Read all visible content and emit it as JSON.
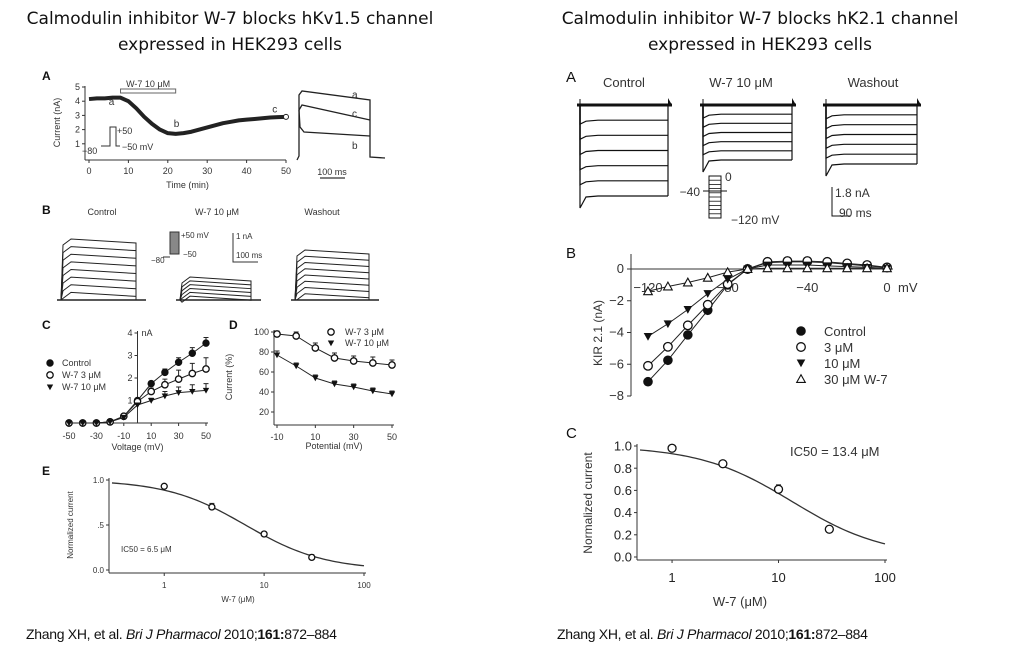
{
  "titles": {
    "left": [
      "Calmodulin inhibitor W-7 blocks hKv1.5 channel",
      "expressed  in HEK293 cells"
    ],
    "right": [
      "Calmodulin inhibitor W-7 blocks hK2.1 channel",
      "expressed  in HEK293 cells"
    ]
  },
  "citations": {
    "left": {
      "authors": "Zhang XH, et al.",
      "journal": "Bri J Pharmacol",
      "year": "2010;",
      "volume": "161:",
      "pages": "872–884"
    },
    "right": {
      "authors": "Zhang XH, et al.",
      "journal": "Bri J Pharmacol",
      "year": "2010;",
      "volume": "161:",
      "pages": "872–884"
    }
  },
  "labels": {
    "left": {
      "A": {
        "letter": "A",
        "drug_bar": "W-7 10 μM",
        "ylabel": "Current (nA)",
        "xlabel": "Time (min)",
        "point_labels": [
          "a",
          "b",
          "c"
        ],
        "protocol": [
          "+50",
          "−80",
          "−50 mV"
        ],
        "trace_labels": [
          "a",
          "c",
          "b"
        ],
        "scale": "100 ms"
      },
      "B": {
        "letter": "B",
        "conditions": [
          "Control",
          "W-7 10 μM",
          "Washout"
        ],
        "protocol": [
          "+50 mV",
          "−80",
          "−50"
        ],
        "scale_current": "1 nA",
        "scale_time": "100 ms"
      },
      "C": {
        "letter": "C"
      },
      "D": {
        "letter": "D"
      },
      "E": {
        "letter": "E",
        "annotation": "IC50 = 6.5 μM"
      }
    },
    "right": {
      "A": {
        "letter": "A",
        "conditions": [
          "Control",
          "W-7 10 μM",
          "Washout"
        ],
        "protocol": [
          "0",
          "−40",
          "−120 mV"
        ],
        "scale_current": "1.8 nA",
        "scale_time": "90 ms"
      },
      "B": {
        "letter": "B"
      },
      "C": {
        "letter": "C",
        "annotation": "IC50 = 13.4 μM"
      }
    }
  },
  "chart_data": [
    {
      "id": "left-A",
      "type": "scatter",
      "title": "",
      "xlabel": "Time (min)",
      "ylabel": "Current (nA)",
      "xlim": [
        0,
        50
      ],
      "ylim": [
        0,
        5
      ],
      "xticks": [
        0,
        10,
        20,
        30,
        40,
        50
      ],
      "yticks": [
        1,
        2,
        3,
        4,
        5
      ],
      "series": [
        {
          "name": "current",
          "x": [
            0,
            2,
            4,
            6,
            8,
            10,
            12,
            14,
            16,
            18,
            20,
            22,
            24,
            26,
            28,
            30,
            32,
            34,
            36,
            38,
            40,
            42,
            44,
            46,
            48,
            50
          ],
          "y": [
            4.15,
            4.2,
            4.2,
            4.25,
            4.25,
            4.0,
            3.5,
            2.9,
            2.4,
            2.0,
            1.75,
            1.7,
            1.75,
            1.85,
            2.0,
            2.15,
            2.3,
            2.45,
            2.55,
            2.65,
            2.7,
            2.75,
            2.8,
            2.85,
            2.88,
            2.9
          ]
        }
      ],
      "annotations": [
        {
          "text": "W-7 10 μM",
          "x_range": [
            8,
            22
          ]
        },
        {
          "text": "a",
          "x": 5
        },
        {
          "text": "b",
          "x": 22
        },
        {
          "text": "c",
          "x": 47
        }
      ]
    },
    {
      "id": "left-C",
      "type": "line",
      "xlabel": "Voltage (mV)",
      "ylabel": "nA",
      "xlim": [
        -50,
        50
      ],
      "ylim": [
        0,
        4
      ],
      "xticks": [
        -50,
        -30,
        -10,
        10,
        30,
        50
      ],
      "yticks": [
        1,
        2,
        3,
        4
      ],
      "legend": "left",
      "x": [
        -50,
        -40,
        -30,
        -20,
        -10,
        0,
        10,
        20,
        30,
        40,
        50
      ],
      "series": [
        {
          "name": "Control",
          "marker": "filled-circle",
          "values": [
            0,
            0,
            0,
            0.05,
            0.3,
            1.0,
            1.75,
            2.25,
            2.7,
            3.1,
            3.55
          ],
          "errors": [
            0,
            0,
            0,
            0,
            0.05,
            0.05,
            0.1,
            0.15,
            0.2,
            0.25,
            0.25
          ]
        },
        {
          "name": "W-7 3 μM",
          "marker": "open-circle",
          "values": [
            0,
            0,
            0,
            0.05,
            0.3,
            0.95,
            1.4,
            1.7,
            1.95,
            2.2,
            2.4
          ],
          "errors": [
            0,
            0,
            0,
            0,
            0.05,
            0.05,
            0.15,
            0.25,
            0.4,
            0.45,
            0.5
          ]
        },
        {
          "name": "W-7 10 μM",
          "marker": "filled-triangle-down",
          "values": [
            0,
            0,
            0,
            0.05,
            0.25,
            0.8,
            1.0,
            1.2,
            1.35,
            1.4,
            1.45
          ],
          "errors": [
            0,
            0,
            0,
            0,
            0.05,
            0.05,
            0.1,
            0.2,
            0.25,
            0.3,
            0.3
          ]
        }
      ]
    },
    {
      "id": "left-D",
      "type": "line",
      "xlabel": "Potential (mV)",
      "ylabel": "Current (%)",
      "xlim": [
        -10,
        50
      ],
      "ylim": [
        10,
        100
      ],
      "xticks": [
        -10,
        10,
        30,
        50
      ],
      "yticks": [
        20,
        40,
        60,
        80,
        100
      ],
      "legend": "top-right",
      "x": [
        -10,
        0,
        10,
        20,
        30,
        40,
        50
      ],
      "series": [
        {
          "name": "W-7 3 μM",
          "marker": "open-circle",
          "values": [
            98,
            96,
            84,
            74,
            71,
            69,
            67
          ],
          "errors": [
            3,
            4,
            5,
            5,
            5,
            6,
            5
          ]
        },
        {
          "name": "W-7 10 μM",
          "marker": "filled-triangle-down",
          "values": [
            77,
            66,
            54,
            48,
            45,
            41,
            38
          ],
          "errors": [
            4,
            3,
            3,
            3,
            3,
            3,
            3
          ]
        }
      ]
    },
    {
      "id": "left-E",
      "type": "scatter",
      "xlabel": "W-7 (μM)",
      "ylabel": "Normalized current",
      "xscale": "log",
      "xlim": [
        0.3,
        100
      ],
      "ylim": [
        0,
        1.0
      ],
      "xticks": [
        1,
        10,
        100
      ],
      "yticks": [
        0.0,
        0.5,
        1.0
      ],
      "ytick_labels": [
        "0.0",
        ".5",
        "1.0"
      ],
      "series": [
        {
          "name": "data",
          "marker": "open-circle",
          "x": [
            1,
            3,
            10,
            30
          ],
          "values": [
            0.93,
            0.7,
            0.4,
            0.14
          ],
          "errors": [
            0.01,
            0.04,
            0.02,
            0.03
          ]
        }
      ],
      "fit": {
        "ic50": 6.5,
        "hill": 1.1
      },
      "annotations": [
        "IC50 = 6.5 μM"
      ]
    },
    {
      "id": "right-B",
      "type": "line",
      "xlabel": "mV",
      "ylabel": "KIR 2.1 (nA)",
      "xlim": [
        -125,
        0
      ],
      "ylim": [
        -8,
        0.8
      ],
      "xticks": [
        -120,
        -80,
        -40,
        0
      ],
      "yticks": [
        0,
        -2,
        -4,
        -6,
        -8
      ],
      "legend": "bottom-right",
      "x": [
        -120,
        -110,
        -100,
        -90,
        -80,
        -70,
        -60,
        -50,
        -40,
        -30,
        -20,
        -10,
        0
      ],
      "series": [
        {
          "name": "Control",
          "marker": "filled-circle",
          "values": [
            -7.1,
            -5.75,
            -4.15,
            -2.6,
            -1.0,
            0,
            0.4,
            0.45,
            0.45,
            0.4,
            0.3,
            0.2,
            0.1
          ]
        },
        {
          "name": "3 μM",
          "marker": "open-circle",
          "values": [
            -6.1,
            -4.9,
            -3.55,
            -2.25,
            -0.95,
            0,
            0.45,
            0.5,
            0.5,
            0.45,
            0.35,
            0.25,
            0.1
          ]
        },
        {
          "name": "10 μM",
          "marker": "filled-triangle-down",
          "values": [
            -4.25,
            -3.45,
            -2.55,
            -1.55,
            -0.65,
            0,
            0.25,
            0.25,
            0.25,
            0.2,
            0.15,
            0.1,
            0.05
          ]
        },
        {
          "name": "30 μM W-7",
          "marker": "open-triangle-up",
          "values": [
            -1.4,
            -1.1,
            -0.85,
            -0.55,
            -0.2,
            0,
            0.05,
            0.05,
            0.05,
            0.05,
            0.05,
            0.05,
            0.05
          ]
        }
      ]
    },
    {
      "id": "right-C",
      "type": "scatter",
      "xlabel": "W-7 (μM)",
      "ylabel": "Normalized current",
      "xscale": "log",
      "xlim": [
        0.5,
        100
      ],
      "ylim": [
        0,
        1.0
      ],
      "xticks": [
        1,
        10,
        100
      ],
      "yticks": [
        0.0,
        0.2,
        0.4,
        0.6,
        0.8,
        1.0
      ],
      "ytick_labels": [
        "0.0",
        "0.2",
        "0.4",
        "0.6",
        "0.8",
        "1.0"
      ],
      "series": [
        {
          "name": "data",
          "marker": "open-circle",
          "x": [
            1,
            3,
            10,
            30
          ],
          "values": [
            0.98,
            0.84,
            0.61,
            0.25
          ],
          "errors": [
            0.01,
            0.02,
            0.04,
            0.02
          ]
        }
      ],
      "fit": {
        "ic50": 13.4,
        "hill": 1.0
      },
      "annotations": [
        "IC50 = 13.4 μM"
      ]
    }
  ]
}
